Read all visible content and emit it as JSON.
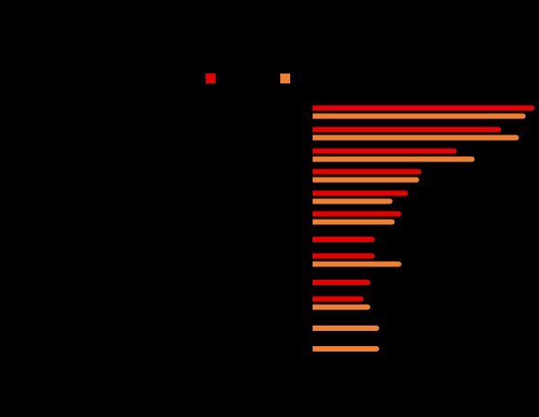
{
  "chart_data": {
    "type": "bar",
    "orientation": "horizontal",
    "background": "#000000",
    "categories": [
      "",
      "",
      "",
      "",
      "",
      "",
      "",
      "",
      "",
      "",
      "",
      ""
    ],
    "series": [
      {
        "color": "#e60000",
        "values": [
          100,
          85,
          65,
          49,
          43,
          40,
          28,
          28,
          26,
          23,
          null,
          null
        ]
      },
      {
        "color": "#f08030",
        "values": [
          96,
          93,
          73,
          48,
          36,
          37,
          null,
          40,
          null,
          26,
          30,
          30
        ]
      }
    ],
    "xlim": [
      0,
      100
    ],
    "grid": false,
    "legend": "top"
  }
}
